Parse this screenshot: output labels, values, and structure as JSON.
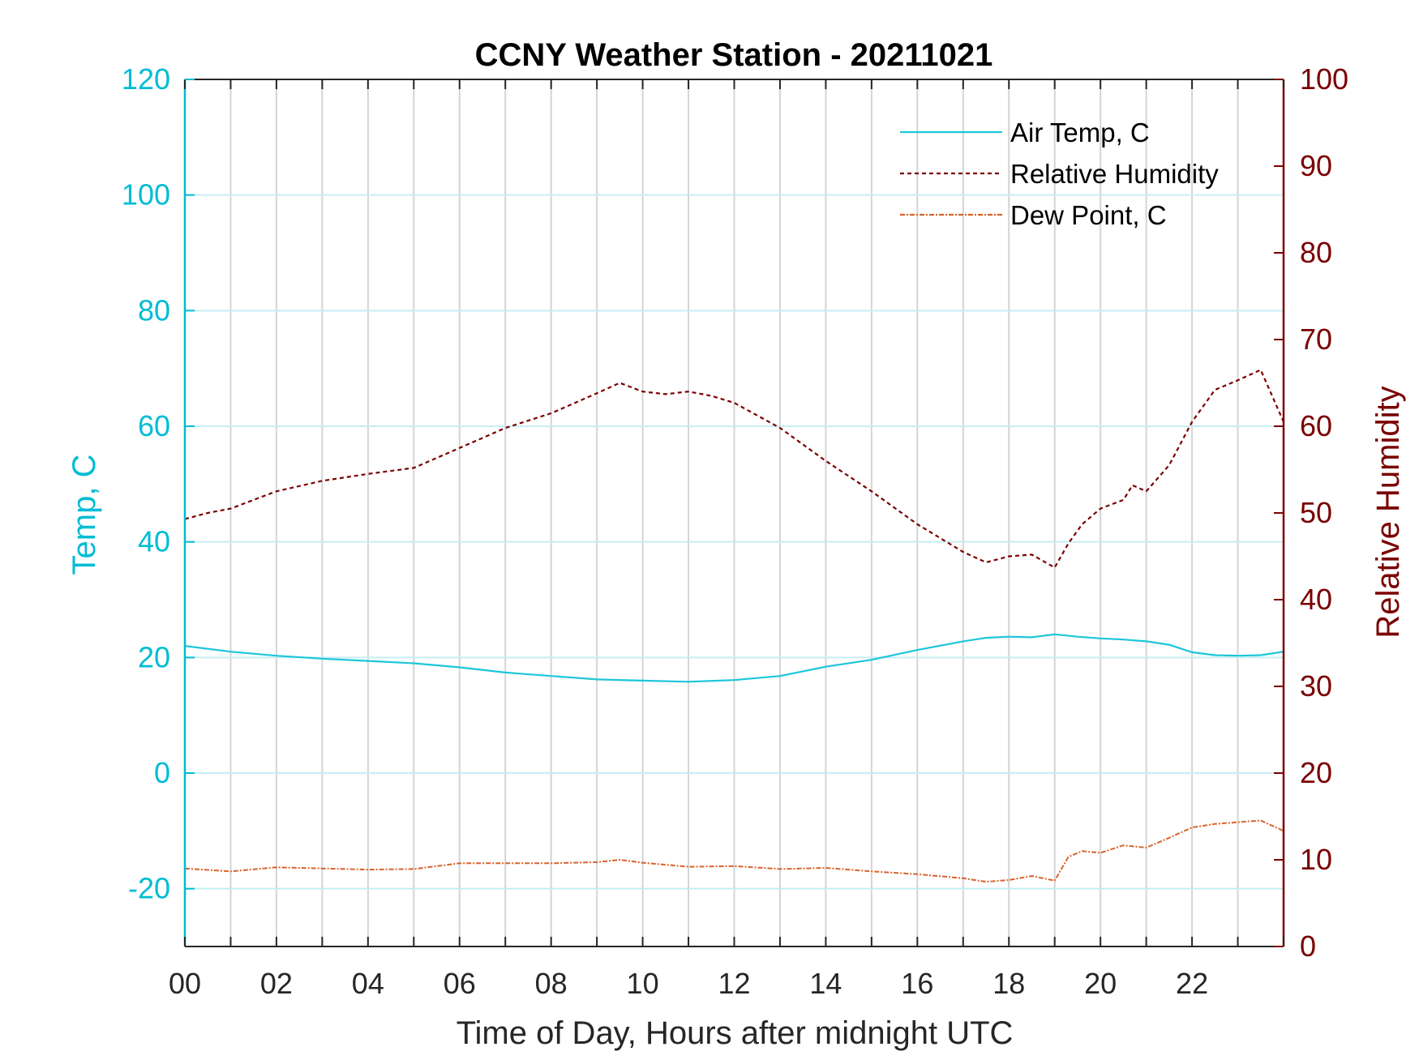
{
  "chart_data": {
    "type": "line",
    "title": "CCNY Weather Station - 20211021",
    "xlabel": "Time of Day, Hours after midnight UTC",
    "ylabel_left": "Temp, C",
    "ylabel_right": "Relative Humidity",
    "xlim": [
      0,
      24
    ],
    "ylim_left": [
      -30,
      120
    ],
    "ylim_right": [
      0,
      100
    ],
    "x_ticks": [
      0,
      2,
      4,
      6,
      8,
      10,
      12,
      14,
      16,
      18,
      20,
      22
    ],
    "x_tick_labels": [
      "00",
      "02",
      "04",
      "06",
      "08",
      "10",
      "12",
      "14",
      "16",
      "18",
      "20",
      "22"
    ],
    "y_left_ticks": [
      120,
      100,
      80,
      60,
      40,
      20,
      0,
      -20
    ],
    "y_left_tick_labels": [
      "120",
      "100",
      "80",
      "60",
      "40",
      "20",
      "0",
      "-20"
    ],
    "y_right_ticks": [
      100,
      90,
      80,
      70,
      60,
      50,
      40,
      30,
      20,
      10,
      0
    ],
    "y_right_tick_labels": [
      "100",
      "90",
      "80",
      "70",
      "60",
      "50",
      "40",
      "30",
      "20",
      "10",
      "0"
    ],
    "grid": true,
    "legend_position": "top-right",
    "colors": {
      "left_axis": "#00bcd4",
      "right_axis": "#7a0000",
      "air_temp": "#1cc6d9",
      "humidity": "#7a0000",
      "dew_point": "#d9622b",
      "vgrid": "#d4d4d4",
      "hgrid": "#c7eef5"
    },
    "series": [
      {
        "name": "Air Temp, C",
        "axis": "left",
        "style": "solid",
        "x": [
          0,
          1,
          2,
          3,
          4,
          5,
          6,
          7,
          8,
          9,
          10,
          11,
          12,
          13,
          14,
          15,
          16,
          17,
          17.5,
          18,
          18.5,
          19,
          19.5,
          20,
          20.5,
          21,
          21.5,
          22,
          22.5,
          23,
          23.5,
          24
        ],
        "values": [
          22,
          21,
          20.3,
          19.8,
          19.4,
          19,
          18.3,
          17.4,
          16.8,
          16.2,
          16,
          15.8,
          16.1,
          16.8,
          18.4,
          19.6,
          21.3,
          22.8,
          23.4,
          23.6,
          23.5,
          24,
          23.6,
          23.3,
          23.1,
          22.8,
          22.2,
          20.9,
          20.4,
          20.3,
          20.4,
          21
        ]
      },
      {
        "name": "Relative Humidity",
        "axis": "right",
        "style": "dashed",
        "x": [
          0,
          0.5,
          1,
          1.5,
          2,
          3,
          4,
          5,
          6,
          7,
          8,
          9,
          9.5,
          10,
          10.5,
          11,
          11.5,
          12,
          13,
          14,
          15,
          16,
          17,
          17.5,
          18,
          18.5,
          19,
          19.3,
          19.6,
          20,
          20.5,
          20.7,
          21,
          21.5,
          22,
          22.5,
          23,
          23.5,
          24
        ],
        "values": [
          49.3,
          50,
          50.5,
          51.5,
          52.5,
          53.7,
          54.5,
          55.2,
          57.5,
          59.8,
          61.5,
          63.8,
          65,
          64,
          63.7,
          64,
          63.5,
          62.7,
          59.8,
          56,
          52.5,
          48.7,
          45.5,
          44.3,
          45,
          45.2,
          43.7,
          46.5,
          48.7,
          50.5,
          51.5,
          53.2,
          52.5,
          55.5,
          60.5,
          64.2,
          65.3,
          66.5,
          60.5
        ]
      },
      {
        "name": "Dew Point, C",
        "axis": "left",
        "style": "dash-dot",
        "x": [
          0,
          1,
          2,
          3,
          4,
          5,
          6,
          7,
          8,
          9,
          9.5,
          10,
          11,
          12,
          13,
          14,
          15,
          16,
          17,
          17.5,
          18,
          18.5,
          19,
          19.3,
          19.6,
          20,
          20.5,
          21,
          21.5,
          22,
          22.5,
          23,
          23.5,
          24
        ],
        "values": [
          -16.5,
          -17,
          -16.3,
          -16.5,
          -16.7,
          -16.6,
          -15.6,
          -15.6,
          -15.6,
          -15.4,
          -15,
          -15.5,
          -16.2,
          -16.1,
          -16.6,
          -16.4,
          -17,
          -17.5,
          -18.2,
          -18.8,
          -18.5,
          -17.8,
          -18.6,
          -14.5,
          -13.5,
          -13.8,
          -12.5,
          -12.9,
          -11.2,
          -9.4,
          -8.8,
          -8.5,
          -8.2,
          -10
        ]
      }
    ]
  }
}
